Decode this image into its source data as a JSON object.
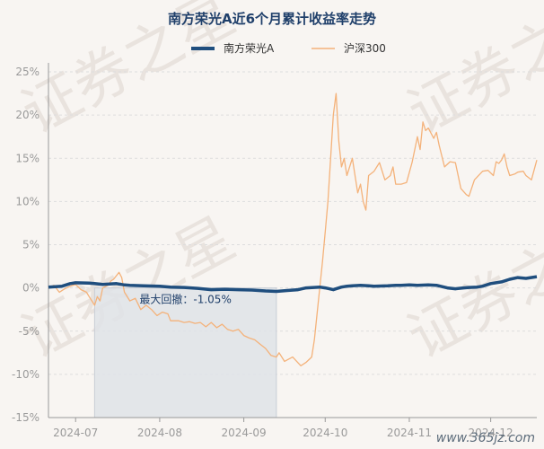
{
  "chart_data": {
    "type": "line",
    "title": "南方荣光A近6个月累计收益率走势",
    "xlabel": "",
    "ylabel": "",
    "ylim": [
      -15,
      25
    ],
    "yticks": [
      -15,
      -10,
      -5,
      0,
      5,
      10,
      15,
      20,
      25
    ],
    "yticklabels": [
      "-15%",
      "-10%",
      "-5%",
      "0%",
      "5%",
      "10%",
      "15%",
      "20%",
      "25%"
    ],
    "x_range": [
      0,
      180
    ],
    "xticks": [
      {
        "label": "2024-07",
        "x": 10
      },
      {
        "label": "2024-08",
        "x": 41
      },
      {
        "label": "2024-09",
        "x": 72
      },
      {
        "label": "2024-10",
        "x": 102
      },
      {
        "label": "2024-11",
        "x": 133
      },
      {
        "label": "2024-12",
        "x": 163
      }
    ],
    "legend_position": "top",
    "grid": true,
    "max_drawdown": {
      "label": "最大回撤：-1.05%",
      "x_start": 17,
      "x_end": 84
    },
    "series": [
      {
        "name": "南方荣光A",
        "color": "#1f4e7e",
        "x": [
          0,
          5,
          8,
          10,
          15,
          17,
          20,
          25,
          28,
          30,
          35,
          41,
          45,
          50,
          55,
          60,
          65,
          70,
          75,
          80,
          84,
          88,
          92,
          95,
          100,
          102,
          105,
          108,
          110,
          112,
          115,
          118,
          120,
          125,
          128,
          130,
          133,
          136,
          140,
          143,
          147,
          150,
          153,
          155,
          158,
          160,
          163,
          167,
          170,
          173,
          176,
          180
        ],
        "values": [
          0.1,
          0.2,
          0.5,
          0.6,
          0.55,
          0.5,
          0.4,
          0.5,
          0.35,
          0.3,
          0.25,
          0.2,
          0.1,
          0.05,
          -0.05,
          -0.2,
          -0.15,
          -0.2,
          -0.25,
          -0.35,
          -0.4,
          -0.3,
          -0.2,
          0.0,
          0.1,
          0.0,
          -0.2,
          0.1,
          0.2,
          0.25,
          0.3,
          0.25,
          0.2,
          0.25,
          0.3,
          0.3,
          0.35,
          0.3,
          0.35,
          0.3,
          0.0,
          -0.1,
          0.0,
          0.05,
          0.1,
          0.2,
          0.5,
          0.7,
          1.0,
          1.2,
          1.1,
          1.3
        ]
      },
      {
        "name": "沪深300",
        "color": "#f4b27a",
        "x": [
          0,
          2,
          4,
          6,
          8,
          10,
          12,
          14,
          15,
          16,
          17,
          18,
          19,
          20,
          22,
          23,
          24,
          26,
          27,
          28,
          30,
          32,
          34,
          36,
          38,
          40,
          42,
          44,
          45,
          46,
          48,
          50,
          52,
          54,
          56,
          58,
          60,
          62,
          64,
          66,
          68,
          70,
          72,
          74,
          76,
          78,
          80,
          82,
          84,
          85,
          87,
          90,
          93,
          95,
          97,
          98,
          99,
          100,
          101,
          102,
          103,
          104,
          105,
          106,
          107,
          108,
          109,
          110,
          112,
          114,
          115,
          116,
          117,
          118,
          120,
          122,
          124,
          126,
          127,
          128,
          130,
          132,
          134,
          136,
          137,
          138,
          139,
          140,
          142,
          143,
          144,
          146,
          148,
          150,
          152,
          154,
          155,
          157,
          160,
          162,
          164,
          165,
          166,
          167,
          168,
          169,
          170,
          172,
          173,
          175,
          176,
          178,
          180
        ],
        "values": [
          0.0,
          0.3,
          -0.5,
          -0.1,
          0.2,
          0.4,
          -0.2,
          -0.5,
          -1.0,
          -1.5,
          -2.0,
          -1.0,
          -1.5,
          0.0,
          0.3,
          0.8,
          1.0,
          1.8,
          1.2,
          -0.5,
          -1.5,
          -1.2,
          -2.5,
          -2.0,
          -2.5,
          -3.2,
          -2.8,
          -3.0,
          -3.8,
          -3.8,
          -3.8,
          -4.0,
          -3.9,
          -4.1,
          -4.0,
          -4.5,
          -4.0,
          -4.6,
          -4.2,
          -4.8,
          -5.0,
          -4.8,
          -5.5,
          -5.8,
          -6.0,
          -6.5,
          -7.0,
          -7.8,
          -8.0,
          -7.5,
          -8.5,
          -8.0,
          -9.0,
          -8.6,
          -8.0,
          -6.0,
          -3.0,
          0.0,
          3.0,
          6.5,
          10.0,
          15.0,
          20.0,
          22.5,
          17.0,
          14.0,
          15.0,
          13.0,
          15.0,
          11.0,
          12.0,
          10.0,
          9.0,
          13.0,
          13.5,
          14.5,
          12.5,
          13.0,
          14.0,
          12.0,
          12.0,
          12.2,
          14.5,
          17.5,
          16.0,
          19.2,
          18.2,
          18.5,
          17.3,
          18.0,
          16.5,
          14.0,
          14.6,
          14.5,
          11.5,
          10.8,
          10.6,
          12.5,
          13.5,
          13.6,
          13.0,
          14.6,
          14.4,
          14.8,
          15.5,
          14.0,
          13.0,
          13.2,
          13.4,
          13.5,
          13.0,
          12.5,
          14.8
        ]
      }
    ]
  },
  "watermark": {
    "text": "证券之星"
  },
  "footer": {
    "site": "www.365jz.com"
  },
  "colors": {
    "background": "#f8f5f2",
    "grid": "#dddddd",
    "drawdown_fill": "#dfe3e8"
  }
}
